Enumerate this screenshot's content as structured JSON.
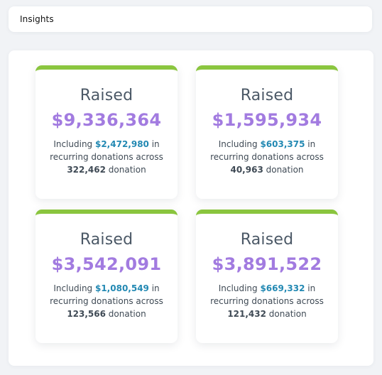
{
  "header": {
    "title": "Insights"
  },
  "cards": [
    {
      "label": "Raised",
      "amount": "$9,336,364",
      "prefix": "Including ",
      "recurring_amount": "$2,472,980",
      "mid": " in recurring donations across ",
      "donation_count": "322,462",
      "suffix": " donation"
    },
    {
      "label": "Raised",
      "amount": "$1,595,934",
      "prefix": "Including ",
      "recurring_amount": "$603,375",
      "mid": " in recurring donations across ",
      "donation_count": "40,963",
      "suffix": " donation"
    },
    {
      "label": "Raised",
      "amount": "$3,542,091",
      "prefix": "Including ",
      "recurring_amount": "$1,080,549",
      "mid": " in recurring donations across ",
      "donation_count": "123,566",
      "suffix": " donation"
    },
    {
      "label": "Raised",
      "amount": "$3,891,522",
      "prefix": "Including ",
      "recurring_amount": "$669,332",
      "mid": " in recurring donations across ",
      "donation_count": "121,432",
      "suffix": " donation"
    }
  ],
  "colors": {
    "accent_bar": "#8ac53e",
    "amount_text": "#a27be0",
    "recurring_text": "#2389b3"
  }
}
